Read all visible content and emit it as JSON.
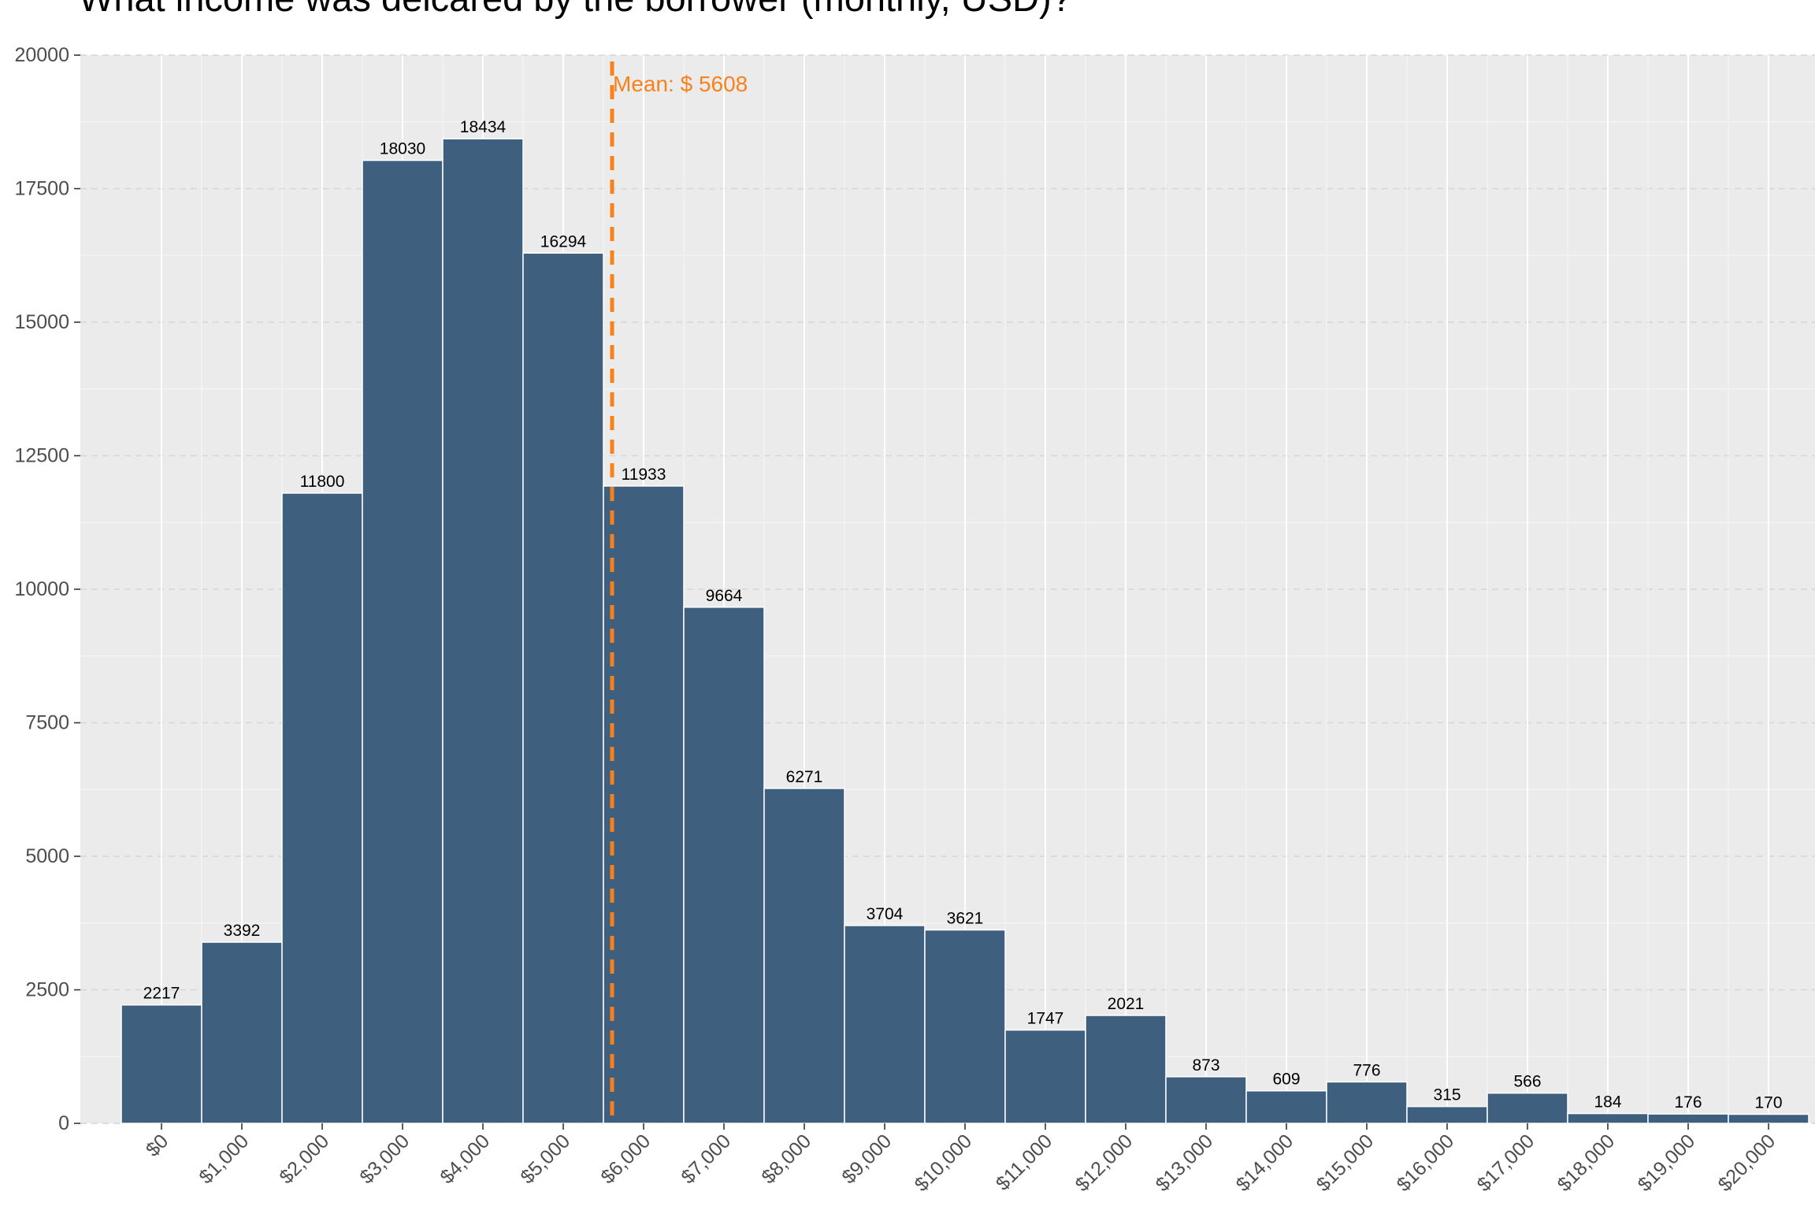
{
  "chart_data": {
    "type": "bar",
    "title": "What income was delcared by the borrower (monthly, USD)?",
    "xlabel": "",
    "ylabel": "",
    "categories": [
      "$0",
      "$1,000",
      "$2,000",
      "$3,000",
      "$4,000",
      "$5,000",
      "$6,000",
      "$7,000",
      "$8,000",
      "$9,000",
      "$10,000",
      "$11,000",
      "$12,000",
      "$13,000",
      "$14,000",
      "$15,000",
      "$16,000",
      "$17,000",
      "$18,000",
      "$19,000",
      "$20,000"
    ],
    "x": [
      0,
      1000,
      2000,
      3000,
      4000,
      5000,
      6000,
      7000,
      8000,
      9000,
      10000,
      11000,
      12000,
      13000,
      14000,
      15000,
      16000,
      17000,
      18000,
      19000,
      20000
    ],
    "values": [
      2217,
      3392,
      11800,
      18030,
      18434,
      16294,
      11933,
      9664,
      6271,
      3704,
      3621,
      1747,
      2021,
      873,
      609,
      776,
      315,
      566,
      184,
      176,
      170
    ],
    "ylim": [
      0,
      20000
    ],
    "yticks": [
      0,
      2500,
      5000,
      7500,
      10000,
      12500,
      15000,
      17500,
      20000
    ],
    "mean_value": 5608,
    "mean_label": "Mean: $ 5608",
    "grid": true,
    "colors": {
      "bar": "#3f5f7f",
      "bar_edge": "#ffffff",
      "panel": "#ebebeb",
      "grid_major": "#ffffff",
      "grid_minor": "#f5f5f5",
      "ygrid_dash": "#d6d6d6",
      "mean_line": "#f7821c"
    }
  }
}
